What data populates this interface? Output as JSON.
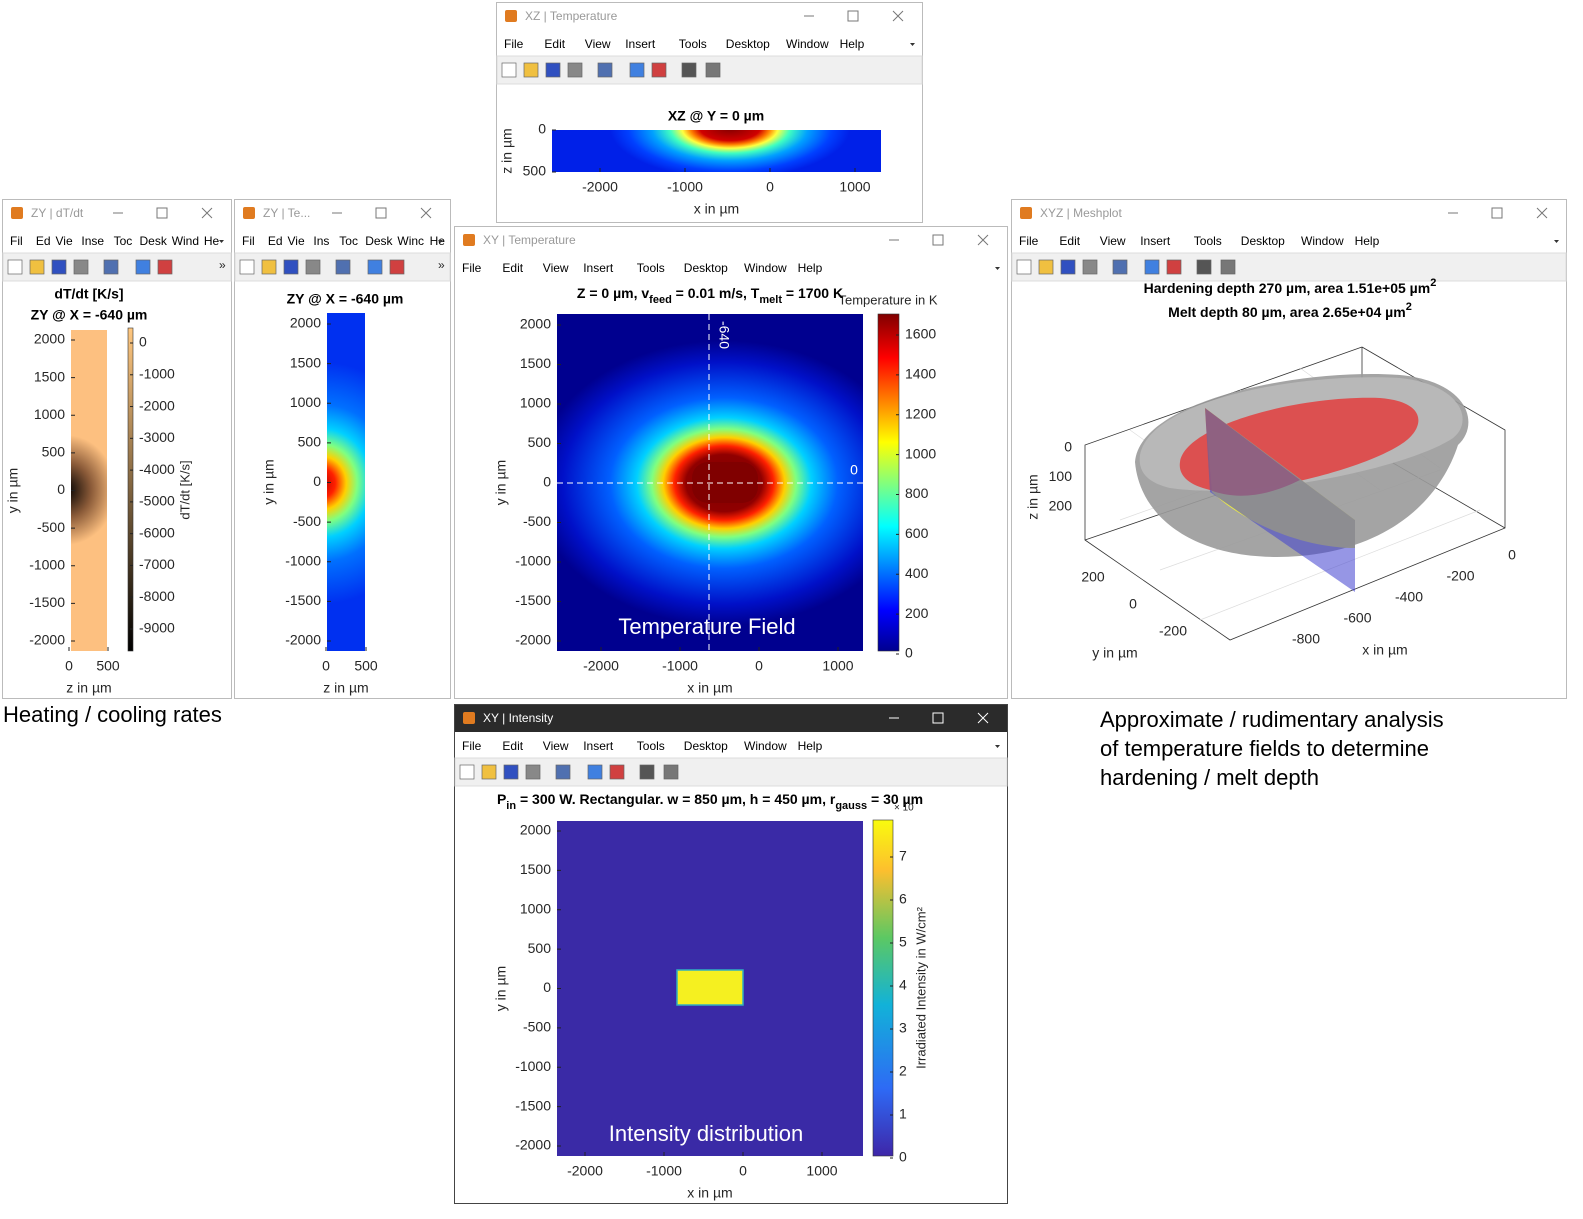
{
  "windows": [
    {
      "title": "XZ | Temperature",
      "menu": [
        "File",
        "Edit",
        "View",
        "Insert",
        "Tools",
        "Desktop",
        "Window",
        "Help"
      ],
      "plot": {
        "title": "XZ @ Y = 0 µm",
        "xlabel": "x in µm",
        "ylabel": "z in µm",
        "xticks": [
          -2000,
          -1000,
          0,
          1000
        ],
        "yticks": [
          0,
          500
        ]
      }
    },
    {
      "title": "ZY | dT/dt",
      "menu": [
        "Fil",
        "Ed",
        "Vie",
        "Inse",
        "Toc",
        "Desk",
        "Wind",
        "He"
      ],
      "plot": {
        "title": [
          "dT/dt [K/s]",
          "ZY @ X = -640 µm"
        ],
        "xlabel": "z in µm",
        "ylabel": "y in µm",
        "xticks": [
          0,
          500
        ],
        "yticks": [
          2000,
          1500,
          1000,
          500,
          0,
          -500,
          -1000,
          -1500,
          -2000
        ],
        "colorbar": {
          "label": "dT/dt [K/s]",
          "ticks": [
            0,
            -1000,
            -2000,
            -3000,
            -4000,
            -5000,
            -6000,
            -7000,
            -8000,
            -9000
          ]
        }
      }
    },
    {
      "title": "ZY | Te...",
      "menu": [
        "Fil",
        "Ed",
        "Vie",
        "Ins",
        "Toc",
        "Desk",
        "Winc",
        "He"
      ],
      "plot": {
        "title": "ZY @ X = -640 µm",
        "xlabel": "z in µm",
        "ylabel": "y in µm",
        "xticks": [
          0,
          500
        ],
        "yticks": [
          2000,
          1500,
          1000,
          500,
          0,
          -500,
          -1000,
          -1500,
          -2000
        ]
      }
    },
    {
      "title": "XY | Temperature",
      "menu": [
        "File",
        "Edit",
        "View",
        "Insert",
        "Tools",
        "Desktop",
        "Window",
        "Help"
      ],
      "plot": {
        "title": [
          "Z = 0 µm, v",
          "feed",
          " = 0.01 m/s, T",
          "melt",
          " = 1700 K"
        ],
        "xlabel": "x in µm",
        "ylabel": "y in µm",
        "xticks": [
          -2000,
          -1000,
          0,
          1000
        ],
        "yticks": [
          2000,
          1500,
          1000,
          500,
          0,
          -500,
          -1000,
          -1500,
          -2000
        ],
        "annotations": [
          "-640",
          "0",
          "Temperature Field"
        ],
        "colorbar": {
          "label": "Temperature in K",
          "ticks": [
            0,
            200,
            400,
            600,
            800,
            1000,
            1200,
            1400,
            1600
          ]
        }
      }
    },
    {
      "title": "XYZ | Meshplot",
      "menu": [
        "File",
        "Edit",
        "View",
        "Insert",
        "Tools",
        "Desktop",
        "Window",
        "Help"
      ],
      "plot": {
        "title": [
          [
            "Hardening depth 270 µm, area 1.51e+05 µm",
            "2"
          ],
          [
            "Melt depth 80 µm, area 2.65e+04 µm",
            "2"
          ]
        ],
        "xlabel": "x in µm",
        "ylabel": "y in µm",
        "zlabel": "z in µm",
        "xticks": [
          0,
          -200,
          -400,
          -600,
          -800
        ],
        "yticks": [
          200,
          0,
          -200
        ],
        "zticks": [
          0,
          100,
          200
        ]
      }
    },
    {
      "title": "XY | Intensity",
      "menu": [
        "File",
        "Edit",
        "View",
        "Insert",
        "Tools",
        "Desktop",
        "Window",
        "Help"
      ],
      "plot": {
        "title": [
          "P",
          "in",
          " = 300 W. Rectangular. w = 850 µm, h = 450 µm, r",
          "gauss",
          " = 30 µm"
        ],
        "xlabel": "x in µm",
        "ylabel": "y in µm",
        "xticks": [
          -2000,
          -1000,
          0,
          1000
        ],
        "yticks": [
          2000,
          1500,
          1000,
          500,
          0,
          -500,
          -1000,
          -1500,
          -2000
        ],
        "annotations": [
          "Intensity distribution"
        ],
        "colorbar": {
          "label": "Irradiated Intensity in W/cm²",
          "exponent": "× 10",
          "ticks": [
            0,
            1,
            2,
            3,
            4,
            5,
            6,
            7
          ]
        }
      }
    }
  ],
  "captions": {
    "left": "Heating / cooling rates",
    "right": [
      "Approximate / rudimentary analysis",
      "of temperature fields to determine",
      "hardening / melt depth"
    ]
  }
}
